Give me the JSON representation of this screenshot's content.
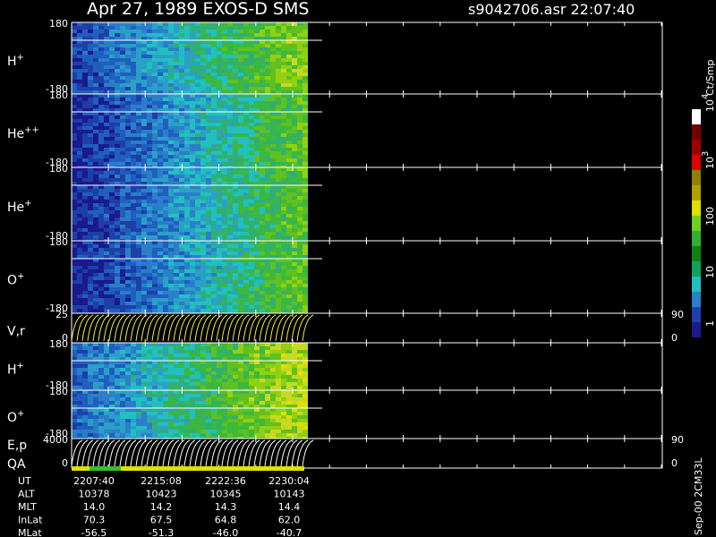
{
  "header": {
    "title": "Apr 27, 1989    EXOS-D SMS",
    "file": "s9042706.asr  22:07:40"
  },
  "panels": [
    {
      "label": {
        "base": "H",
        "sup": "+"
      },
      "ticks": [
        "180",
        "-180"
      ]
    },
    {
      "label": {
        "base": "He",
        "sup": "++"
      },
      "ticks": [
        "180",
        "-180"
      ]
    },
    {
      "label": {
        "base": "He",
        "sup": "+"
      },
      "ticks": [
        "180",
        "-180"
      ]
    },
    {
      "label": {
        "base": "O",
        "sup": "+"
      },
      "ticks": [
        "180",
        "-180"
      ]
    },
    {
      "label": {
        "base": "V,r",
        "sup": ""
      },
      "ticks": [
        "25",
        "0"
      ],
      "right": [
        "90",
        "0"
      ]
    },
    {
      "label": {
        "base": "H",
        "sup": "+"
      },
      "ticks": [
        "180",
        "-180"
      ]
    },
    {
      "label": {
        "base": "O",
        "sup": "+"
      },
      "ticks": [
        "180",
        "-180"
      ]
    },
    {
      "label": {
        "base": "E,p",
        "sup": ""
      },
      "label2": "QA",
      "ticks": [
        "4000",
        "0"
      ],
      "right": [
        "90",
        "0"
      ]
    }
  ],
  "colorbar": {
    "unit": "Ct/Smp",
    "labels": [
      {
        "base": "10",
        "sup": "4"
      },
      {
        "base": "10",
        "sup": "3"
      },
      {
        "base": "100",
        "sup": ""
      },
      {
        "base": "10",
        "sup": ""
      },
      {
        "base": "1",
        "sup": ""
      }
    ]
  },
  "table": {
    "rows": [
      {
        "label": "UT",
        "values": [
          "2207:40",
          "2215:08",
          "2222:36",
          "2230:04"
        ]
      },
      {
        "label": "ALT",
        "values": [
          "10378",
          "10423",
          "10345",
          "10143"
        ]
      },
      {
        "label": "MLT",
        "values": [
          "14.0",
          "14.2",
          "14.3",
          "14.4"
        ]
      },
      {
        "label": "InLat",
        "values": [
          "70.3",
          "67.5",
          "64.8",
          "62.0"
        ]
      },
      {
        "label": "MLat",
        "values": [
          "-56.5",
          "-51.3",
          "-46.0",
          "-40.7"
        ]
      }
    ]
  },
  "footer": "Sep-00 2CM33L"
}
